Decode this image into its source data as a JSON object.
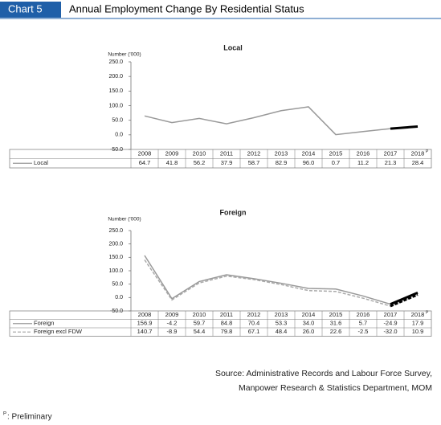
{
  "header": {
    "label": "Chart 5",
    "title": "Annual Employment Change By Residential Status"
  },
  "chart_data": [
    {
      "type": "line",
      "title": "Local",
      "y_label": "Number ('000)",
      "categories": [
        "2008",
        "2009",
        "2010",
        "2011",
        "2012",
        "2013",
        "2014",
        "2015",
        "2016",
        "2017",
        "2018"
      ],
      "preliminary_mark": "P",
      "preliminary_color": "#000000",
      "series": [
        {
          "name": "Local",
          "color": "#999999",
          "dashed": false,
          "values": [
            64.7,
            41.8,
            56.2,
            37.9,
            58.7,
            82.9,
            96.0,
            0.7,
            11.2,
            21.3,
            28.4
          ],
          "value_labels": [
            "64.7",
            "41.8",
            "56.2",
            "37.9",
            "58.7",
            "82.9",
            "96.0",
            "0.7",
            "11.2",
            "21.3",
            "28.4"
          ]
        }
      ],
      "ylim": [
        -50,
        250
      ],
      "yticks": [
        {
          "value": -50,
          "label": "-50.0"
        },
        {
          "value": 0,
          "label": "0.0"
        },
        {
          "value": 50,
          "label": "50.0"
        },
        {
          "value": 100,
          "label": "100.0"
        },
        {
          "value": 150,
          "label": "150.0"
        },
        {
          "value": 200,
          "label": "200.0"
        },
        {
          "value": 250,
          "label": "250.0"
        }
      ]
    },
    {
      "type": "line",
      "title": "Foreign",
      "y_label": "Number ('000)",
      "categories": [
        "2008",
        "2009",
        "2010",
        "2011",
        "2012",
        "2013",
        "2014",
        "2015",
        "2016",
        "2017",
        "2018"
      ],
      "preliminary_mark": "P",
      "preliminary_color": "#000000",
      "series": [
        {
          "name": "Foreign",
          "color": "#999999",
          "dashed": false,
          "values": [
            156.9,
            -4.2,
            59.7,
            84.8,
            70.4,
            53.3,
            34.0,
            31.6,
            5.7,
            -24.9,
            17.9
          ],
          "value_labels": [
            "156.9",
            "-4.2",
            "59.7",
            "84.8",
            "70.4",
            "53.3",
            "34.0",
            "31.6",
            "5.7",
            "-24.9",
            "17.9"
          ]
        },
        {
          "name": "Foreign excl FDW",
          "color": "#aaaaaa",
          "dashed": true,
          "values": [
            140.7,
            -8.9,
            54.4,
            79.8,
            67.1,
            48.4,
            26.0,
            22.6,
            -2.5,
            -32.0,
            10.9
          ],
          "value_labels": [
            "140.7",
            "-8.9",
            "54.4",
            "79.8",
            "67.1",
            "48.4",
            "26.0",
            "22.6",
            "-2.5",
            "-32.0",
            "10.9"
          ]
        }
      ],
      "ylim": [
        -50,
        250
      ],
      "yticks": [
        {
          "value": -50,
          "label": "-50.0"
        },
        {
          "value": 0,
          "label": "0.0"
        },
        {
          "value": 50,
          "label": "50.0"
        },
        {
          "value": 100,
          "label": "100.0"
        },
        {
          "value": 150,
          "label": "150.0"
        },
        {
          "value": 200,
          "label": "200.0"
        },
        {
          "value": 250,
          "label": "250.0"
        }
      ]
    }
  ],
  "source": [
    "Source: Administrative Records and Labour Force Survey,",
    "Manpower Research & Statistics Department, MOM"
  ],
  "footnote": {
    "mark": "P",
    "text": ": Preliminary"
  }
}
